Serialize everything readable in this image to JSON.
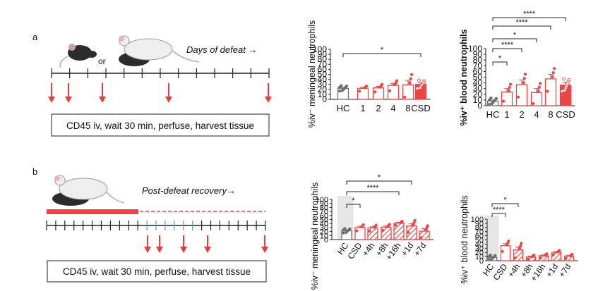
{
  "figure": {
    "panel_a": "a",
    "panel_b": "b",
    "or_text": "or",
    "days_of_defeat": "Days of defeat →",
    "post_defeat_recovery": "Post-defeat recovery→",
    "protocol_a": "CD45 iv, wait 30 min, perfuse, harvest tissue",
    "protocol_b": "CD45 iv, wait 30 min, perfuse, harvest tissue"
  },
  "colors": {
    "hc": "#707070",
    "csd": "#ef4444",
    "shade": "#e6e6e6",
    "arrow": "#e53e3e"
  },
  "chart_data": [
    {
      "id": "a-meningeal",
      "type": "bar",
      "ylabel": "%iv⁻ meningeal neutrophils",
      "ylim": [
        0,
        100
      ],
      "yticks": [
        "0",
        "10",
        "20",
        "30",
        "40",
        "50",
        "60",
        "70",
        "80",
        "90",
        "100"
      ],
      "categories": [
        "HC",
        "1",
        "2",
        "4",
        "8",
        "CSD"
      ],
      "values": [
        22,
        22,
        23,
        28,
        29,
        30
      ],
      "errors": [
        2,
        2,
        3,
        4,
        9,
        3
      ],
      "styles": [
        "gray",
        "outline",
        "outline",
        "outline",
        "outline",
        "solid"
      ],
      "brackets": [
        {
          "from": "HC",
          "to": "CSD",
          "label": "*"
        }
      ]
    },
    {
      "id": "a-blood",
      "type": "bar",
      "ylabel": "%iv⁺ blood neutrophils",
      "ylim": [
        0,
        100
      ],
      "yticks": [
        "0",
        "10",
        "20",
        "30",
        "40",
        "50",
        "60",
        "70",
        "80",
        "90",
        "100"
      ],
      "categories": [
        "HC",
        "1",
        "2",
        "4",
        "8",
        "CSD"
      ],
      "values": [
        8,
        24,
        37,
        23,
        47,
        36
      ],
      "errors": [
        2,
        6,
        8,
        7,
        8,
        4
      ],
      "styles": [
        "gray",
        "outline",
        "outline",
        "outline",
        "outline",
        "solid"
      ],
      "brackets": [
        {
          "from": "HC",
          "to": "1",
          "label": "*"
        },
        {
          "from": "HC",
          "to": "2",
          "label": "****"
        },
        {
          "from": "HC",
          "to": "4",
          "label": "*"
        },
        {
          "from": "HC",
          "to": "8",
          "label": "****"
        },
        {
          "from": "HC",
          "to": "CSD",
          "label": "****"
        }
      ]
    },
    {
      "id": "b-meningeal",
      "type": "bar",
      "ylabel": "%iv⁻ meningeal neutrophils",
      "ylim": [
        0,
        100
      ],
      "yticks": [
        "0",
        "10",
        "20",
        "30",
        "40",
        "50",
        "60",
        "70",
        "80",
        "90",
        "100"
      ],
      "categories": [
        "HC",
        "CSD",
        "+4h",
        "+8h",
        "+16h",
        "+1d",
        "+7d"
      ],
      "values": [
        22,
        30,
        29,
        31,
        41,
        34,
        21
      ],
      "errors": [
        2,
        3,
        3,
        3,
        2,
        6,
        6
      ],
      "styles": [
        "gray",
        "outline",
        "hatch",
        "hatch",
        "hatch",
        "hatch",
        "hatch"
      ],
      "brackets": [
        {
          "from": "HC",
          "to": "CSD",
          "label": "*"
        },
        {
          "from": "HC",
          "to": "+16h",
          "label": "****"
        },
        {
          "from": "HC",
          "to": "+1d",
          "label": "*"
        }
      ]
    },
    {
      "id": "b-blood",
      "type": "bar",
      "ylabel": "%iv⁺ blood neutrophils",
      "ylim": [
        0,
        100
      ],
      "yticks": [
        "0",
        "10",
        "20",
        "30",
        "40",
        "50",
        "60",
        "70",
        "80",
        "90",
        "100"
      ],
      "categories": [
        "HC",
        "CSD",
        "+4h",
        "+8h",
        "+16h",
        "+1d",
        "+7d"
      ],
      "values": [
        8,
        36,
        26,
        9,
        12,
        20,
        11
      ],
      "errors": [
        2,
        5,
        7,
        2,
        2,
        2,
        2
      ],
      "styles": [
        "gray",
        "outline",
        "hatch",
        "hatch",
        "hatch",
        "hatch",
        "hatch"
      ],
      "brackets": [
        {
          "from": "HC",
          "to": "CSD",
          "label": "****"
        },
        {
          "from": "HC",
          "to": "+4h",
          "label": "*"
        }
      ]
    }
  ]
}
